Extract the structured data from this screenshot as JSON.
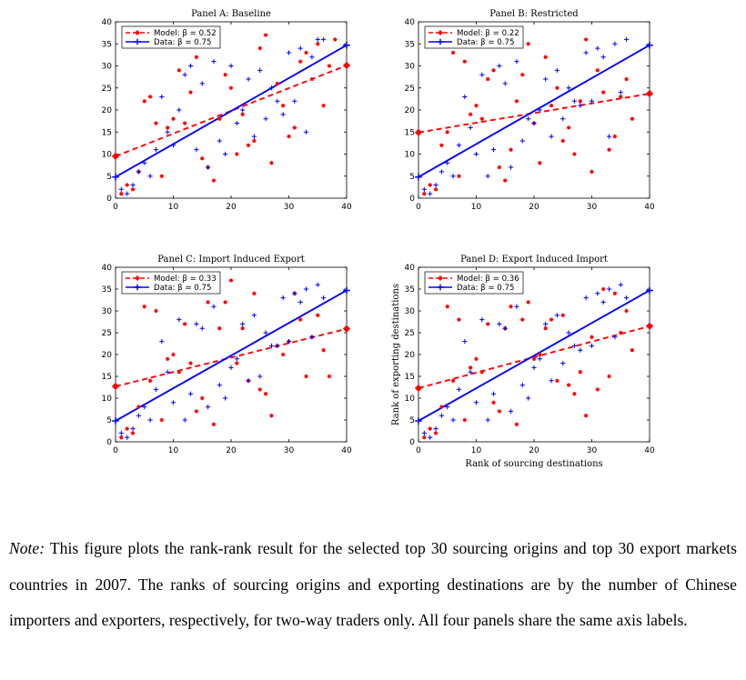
{
  "chart_data": [
    {
      "type": "scatter",
      "title": "Panel A: Baseline",
      "xlabel": "",
      "ylabel": "",
      "xlim": [
        0,
        40
      ],
      "ylim": [
        0,
        40
      ],
      "xticks": [
        0,
        10,
        20,
        30,
        40
      ],
      "yticks": [
        0,
        5,
        10,
        15,
        20,
        25,
        30,
        35,
        40
      ],
      "legend_position": "top-left",
      "series": [
        {
          "name": "Model: β = 0.52",
          "kind": "fit-dashed",
          "color": "#ff0000",
          "x": [
            0,
            40
          ],
          "y": [
            9.5,
            30.1
          ]
        },
        {
          "name": "Data: β = 0.75",
          "kind": "fit-solid",
          "color": "#0000ff",
          "x": [
            0,
            40
          ],
          "y": [
            4.8,
            34.7
          ]
        },
        {
          "name": "",
          "kind": "points-star",
          "color": "#ff0000",
          "x": [
            1,
            2,
            3,
            4,
            5,
            6,
            7,
            8,
            9,
            10,
            11,
            12,
            13,
            14,
            15,
            16,
            17,
            18,
            19,
            20,
            21,
            22,
            23,
            24,
            25,
            26,
            27,
            28,
            29,
            30,
            31,
            32,
            33,
            34,
            35,
            36,
            37,
            38
          ],
          "y": [
            1,
            3,
            2,
            6,
            22,
            23,
            17,
            5,
            16,
            18,
            29,
            17,
            24,
            32,
            9,
            7,
            4,
            18,
            28,
            25,
            10,
            19,
            12,
            13,
            34,
            37,
            8,
            26,
            21,
            14,
            16,
            31,
            33,
            27,
            35,
            21,
            30,
            36
          ]
        },
        {
          "name": "",
          "kind": "points-plus",
          "color": "#0000ff",
          "x": [
            1,
            2,
            3,
            4,
            5,
            6,
            7,
            8,
            9,
            10,
            11,
            12,
            13,
            14,
            15,
            16,
            17,
            18,
            19,
            20,
            21,
            22,
            23,
            24,
            25,
            26,
            27,
            28,
            29,
            30,
            31,
            32,
            33,
            34,
            35,
            36
          ],
          "y": [
            2,
            1,
            3,
            6,
            8,
            5,
            11,
            23,
            15,
            12,
            20,
            28,
            30,
            11,
            26,
            7,
            31,
            13,
            10,
            30,
            17,
            20,
            27,
            14,
            29,
            18,
            25,
            22,
            19,
            33,
            22,
            34,
            15,
            32,
            36,
            36
          ]
        }
      ]
    },
    {
      "type": "scatter",
      "title": "Panel B: Restricted",
      "xlabel": "",
      "ylabel": "",
      "xlim": [
        0,
        40
      ],
      "ylim": [
        0,
        40
      ],
      "xticks": [
        0,
        10,
        20,
        30,
        40
      ],
      "yticks": [
        0,
        5,
        10,
        15,
        20,
        25,
        30,
        35,
        40
      ],
      "legend_position": "top-left",
      "series": [
        {
          "name": "Model: β = 0.22",
          "kind": "fit-dashed",
          "color": "#ff0000",
          "x": [
            0,
            40
          ],
          "y": [
            14.9,
            23.7
          ]
        },
        {
          "name": "Data: β = 0.75",
          "kind": "fit-solid",
          "color": "#0000ff",
          "x": [
            0,
            40
          ],
          "y": [
            4.8,
            34.7
          ]
        },
        {
          "name": "",
          "kind": "points-star",
          "color": "#ff0000",
          "x": [
            1,
            2,
            3,
            4,
            5,
            6,
            7,
            8,
            9,
            10,
            11,
            12,
            13,
            14,
            15,
            16,
            17,
            18,
            19,
            20,
            21,
            22,
            23,
            24,
            25,
            26,
            27,
            28,
            29,
            30,
            31,
            32,
            33,
            34,
            35,
            36,
            37
          ],
          "y": [
            1,
            3,
            2,
            12,
            15,
            33,
            5,
            31,
            19,
            21,
            18,
            27,
            29,
            7,
            4,
            11,
            22,
            28,
            35,
            17,
            8,
            32,
            21,
            25,
            13,
            16,
            10,
            22,
            36,
            6,
            29,
            24,
            11,
            14,
            23,
            27,
            18
          ]
        },
        {
          "name": "",
          "kind": "points-plus",
          "color": "#0000ff",
          "x": [
            1,
            2,
            3,
            4,
            5,
            6,
            7,
            8,
            9,
            10,
            11,
            12,
            13,
            14,
            15,
            16,
            17,
            18,
            19,
            20,
            21,
            22,
            23,
            24,
            25,
            26,
            27,
            28,
            29,
            30,
            31,
            32,
            33,
            34,
            35,
            36
          ],
          "y": [
            2,
            1,
            3,
            6,
            8,
            5,
            12,
            23,
            16,
            10,
            28,
            5,
            11,
            30,
            26,
            7,
            31,
            13,
            18,
            17,
            20,
            27,
            14,
            29,
            18,
            25,
            22,
            21,
            33,
            22,
            34,
            32,
            14,
            35,
            24,
            36
          ]
        }
      ]
    },
    {
      "type": "scatter",
      "title": "Panel C: Import Induced Export",
      "xlabel": "",
      "ylabel": "",
      "xlim": [
        0,
        40
      ],
      "ylim": [
        0,
        40
      ],
      "xticks": [
        0,
        10,
        20,
        30,
        40
      ],
      "yticks": [
        0,
        5,
        10,
        15,
        20,
        25,
        30,
        35,
        40
      ],
      "legend_position": "top-left",
      "series": [
        {
          "name": "Model: β = 0.33",
          "kind": "fit-dashed",
          "color": "#ff0000",
          "x": [
            0,
            40
          ],
          "y": [
            12.7,
            25.9
          ]
        },
        {
          "name": "Data: β = 0.75",
          "kind": "fit-solid",
          "color": "#0000ff",
          "x": [
            0,
            40
          ],
          "y": [
            4.8,
            34.7
          ]
        },
        {
          "name": "",
          "kind": "points-star",
          "color": "#ff0000",
          "x": [
            1,
            2,
            3,
            4,
            5,
            6,
            7,
            8,
            9,
            10,
            11,
            12,
            13,
            14,
            15,
            16,
            17,
            18,
            19,
            20,
            21,
            22,
            23,
            24,
            25,
            26,
            27,
            28,
            29,
            30,
            31,
            32,
            33,
            34,
            35,
            36,
            37
          ],
          "y": [
            1,
            3,
            2,
            8,
            31,
            14,
            30,
            5,
            19,
            20,
            16,
            27,
            18,
            7,
            10,
            32,
            4,
            26,
            32,
            37,
            18,
            26,
            14,
            34,
            12,
            11,
            6,
            22,
            20,
            23,
            34,
            28,
            15,
            24,
            29,
            21,
            15
          ]
        },
        {
          "name": "",
          "kind": "points-plus",
          "color": "#0000ff",
          "x": [
            1,
            2,
            3,
            4,
            5,
            6,
            7,
            8,
            9,
            10,
            11,
            12,
            13,
            14,
            15,
            16,
            17,
            18,
            19,
            20,
            21,
            22,
            23,
            24,
            25,
            26,
            27,
            28,
            29,
            30,
            31,
            32,
            33,
            34,
            35,
            36
          ],
          "y": [
            2,
            1,
            3,
            6,
            8,
            5,
            12,
            23,
            16,
            9,
            28,
            5,
            11,
            27,
            26,
            8,
            31,
            13,
            10,
            17,
            19,
            27,
            14,
            29,
            15,
            25,
            22,
            22,
            33,
            23,
            34,
            32,
            35,
            24,
            36,
            33
          ]
        }
      ]
    },
    {
      "type": "scatter",
      "title": "Panel D: Export Induced Import",
      "xlabel": "Rank of sourcing destinations",
      "ylabel": "Rank of exporting destinations",
      "xlim": [
        0,
        40
      ],
      "ylim": [
        0,
        40
      ],
      "xticks": [
        0,
        10,
        20,
        30,
        40
      ],
      "yticks": [
        0,
        5,
        10,
        15,
        20,
        25,
        30,
        35,
        40
      ],
      "legend_position": "top-left",
      "series": [
        {
          "name": "Model: β = 0.36",
          "kind": "fit-dashed",
          "color": "#ff0000",
          "x": [
            0,
            40
          ],
          "y": [
            12.3,
            26.5
          ]
        },
        {
          "name": "Data: β = 0.75",
          "kind": "fit-solid",
          "color": "#0000ff",
          "x": [
            0,
            40
          ],
          "y": [
            4.8,
            34.7
          ]
        },
        {
          "name": "",
          "kind": "points-star",
          "color": "#ff0000",
          "x": [
            1,
            2,
            3,
            4,
            5,
            6,
            7,
            8,
            9,
            10,
            11,
            12,
            13,
            14,
            15,
            16,
            17,
            18,
            19,
            20,
            21,
            22,
            23,
            24,
            25,
            26,
            27,
            28,
            29,
            30,
            31,
            32,
            33,
            34,
            35,
            36,
            37
          ],
          "y": [
            1,
            3,
            2,
            8,
            31,
            14,
            28,
            5,
            17,
            19,
            16,
            27,
            9,
            7,
            26,
            31,
            4,
            28,
            32,
            19,
            20,
            26,
            28,
            14,
            29,
            13,
            11,
            16,
            6,
            24,
            12,
            35,
            15,
            34,
            25,
            30,
            21
          ]
        },
        {
          "name": "",
          "kind": "points-plus",
          "color": "#0000ff",
          "x": [
            1,
            2,
            3,
            4,
            5,
            6,
            7,
            8,
            9,
            10,
            11,
            12,
            13,
            14,
            15,
            16,
            17,
            18,
            19,
            20,
            21,
            22,
            23,
            24,
            25,
            26,
            27,
            28,
            29,
            30,
            31,
            32,
            33,
            34,
            35,
            36
          ],
          "y": [
            2,
            1,
            3,
            6,
            8,
            5,
            12,
            23,
            16,
            9,
            28,
            5,
            11,
            27,
            26,
            7,
            31,
            13,
            10,
            17,
            19,
            27,
            14,
            29,
            18,
            25,
            22,
            21,
            33,
            22,
            34,
            32,
            35,
            24,
            36,
            33
          ]
        }
      ]
    }
  ],
  "note": {
    "lead": "Note:",
    "text": " This figure plots the rank-rank result for the selected top 30 sourcing origins and top 30 export markets countries in 2007. The ranks of sourcing origins and exporting destinations are by the number of Chinese importers and exporters, respectively, for two-way traders only. All four panels share the same axis labels."
  }
}
